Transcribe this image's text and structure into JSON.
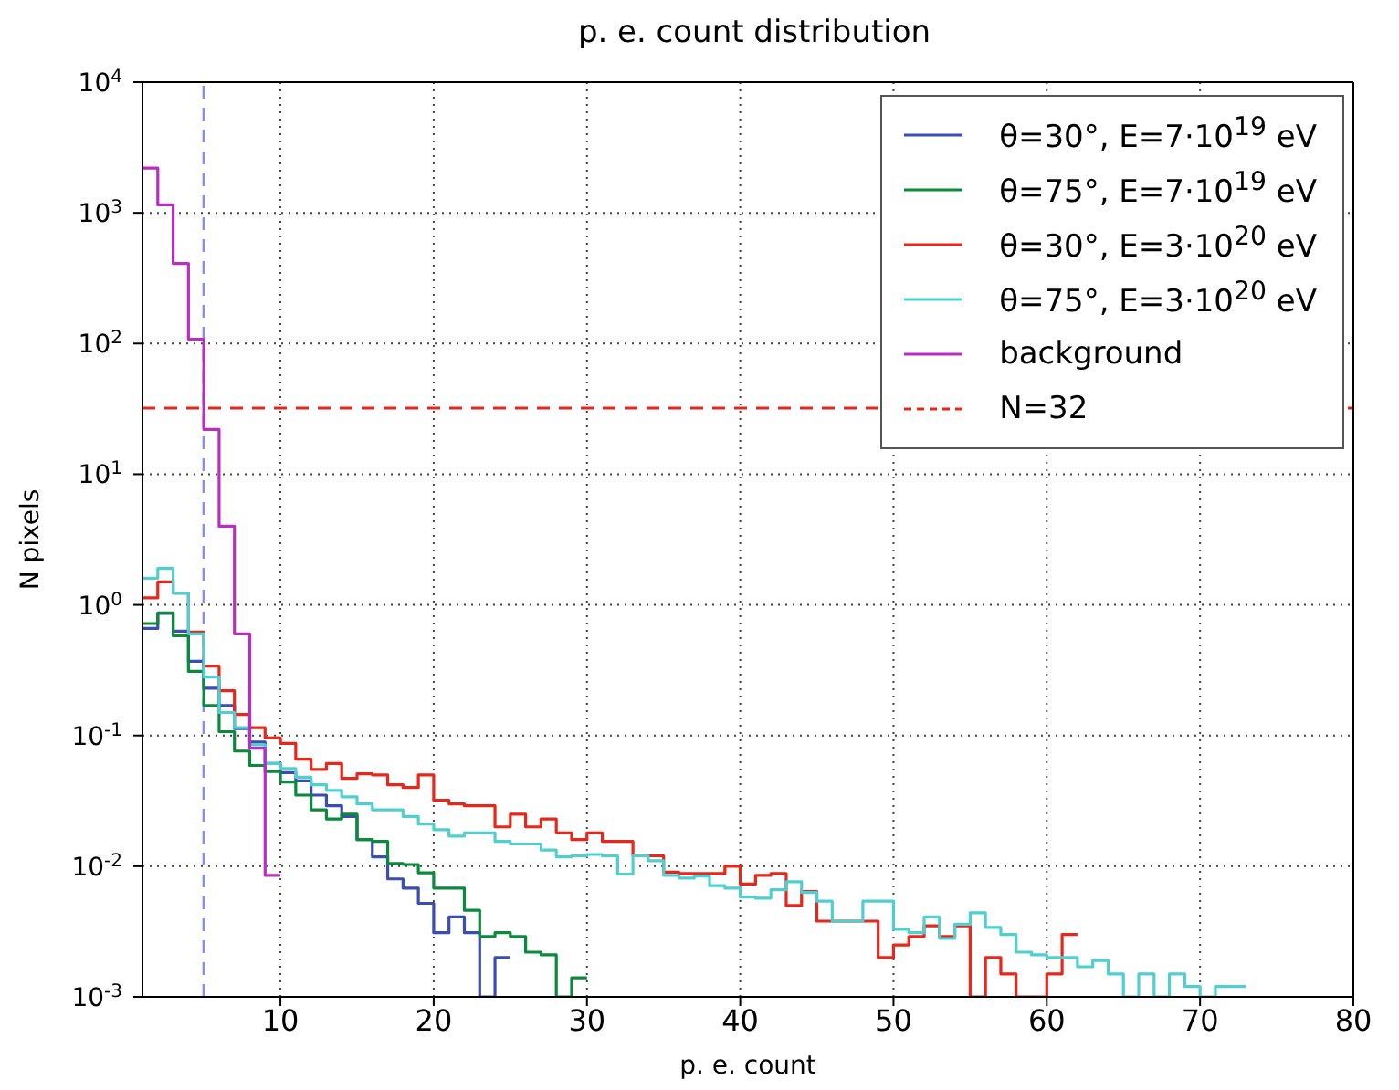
{
  "chart_data": {
    "type": "histogram",
    "title": "p. e. count distribution",
    "xlabel": "p. e. count",
    "ylabel": "N pixels",
    "bins": [
      1,
      2,
      3,
      4,
      5,
      6,
      7,
      8,
      9,
      10,
      11,
      12,
      13,
      14,
      15,
      16,
      17,
      18,
      19,
      20,
      21,
      22,
      23,
      24,
      25,
      26,
      27,
      28,
      29,
      30,
      31,
      32,
      33,
      34,
      35,
      36,
      37,
      38,
      39,
      40,
      41,
      42,
      43,
      44,
      45,
      46,
      47,
      48,
      49,
      50,
      51,
      52,
      53,
      54,
      55,
      56,
      57,
      58,
      59,
      60,
      61,
      62,
      63,
      64,
      65,
      66,
      67,
      68,
      69,
      70,
      71,
      72,
      73
    ],
    "series": [
      {
        "name": "θ=30°, E=7·10$^{19}$ eV",
        "color": "#3a4db5",
        "bins": [
          1,
          2,
          3,
          4,
          5,
          6,
          7,
          8,
          9,
          10,
          11,
          12,
          13,
          14,
          15,
          16,
          17,
          18,
          19,
          20,
          21,
          22,
          23,
          24,
          25
        ],
        "values": [
          0.66,
          0.86,
          0.63,
          0.37,
          0.23,
          0.17,
          0.113,
          0.089,
          0.061,
          0.052,
          0.045,
          0.035,
          0.029,
          0.024,
          0.016,
          0.0118,
          0.008,
          0.0068,
          0.0052,
          0.0031,
          0.0041,
          0.0031,
          null,
          0.002
        ]
      },
      {
        "name": "θ=75°, E=7·10$^{19}$ eV",
        "color": "#0a8a3a",
        "bins": [
          1,
          2,
          3,
          4,
          5,
          6,
          7,
          8,
          9,
          10,
          11,
          12,
          13,
          14,
          15,
          16,
          17,
          18,
          19,
          20,
          21,
          22,
          23,
          24,
          25,
          26,
          27,
          28,
          29,
          30
        ],
        "values": [
          0.72,
          0.87,
          0.58,
          0.31,
          0.17,
          0.107,
          0.076,
          0.059,
          0.053,
          0.044,
          0.035,
          0.027,
          0.023,
          0.025,
          0.016,
          0.0155,
          0.0105,
          0.0103,
          0.0089,
          0.0068,
          0.0068,
          0.0046,
          0.0029,
          0.0031,
          0.0029,
          0.0022,
          0.0021,
          null,
          0.0014
        ]
      },
      {
        "name": "θ=30°, E=3·10$^{20}$ eV",
        "color": "#e8271b",
        "bins": [
          1,
          2,
          3,
          4,
          5,
          6,
          7,
          8,
          9,
          10,
          11,
          12,
          13,
          14,
          15,
          16,
          17,
          18,
          19,
          20,
          21,
          22,
          23,
          24,
          25,
          26,
          27,
          28,
          29,
          30,
          31,
          32,
          33,
          34,
          35,
          36,
          37,
          38,
          39,
          40,
          41,
          42,
          43,
          44,
          45,
          46,
          47,
          48,
          49,
          50,
          51,
          52,
          53,
          54,
          55,
          56,
          57,
          58,
          59,
          60,
          61,
          62
        ],
        "values": [
          1.13,
          1.5,
          1.23,
          0.62,
          0.34,
          0.22,
          0.145,
          0.115,
          0.096,
          0.087,
          0.066,
          0.055,
          0.061,
          0.047,
          0.051,
          0.05,
          0.042,
          0.04,
          0.05,
          0.032,
          0.03,
          0.029,
          0.029,
          0.02,
          0.025,
          0.02,
          0.023,
          0.018,
          0.016,
          0.018,
          0.0155,
          0.0155,
          0.012,
          0.012,
          0.009,
          0.0088,
          0.0088,
          0.0088,
          0.01,
          0.0073,
          0.0085,
          0.0088,
          0.005,
          0.0064,
          0.0038,
          0.0038,
          0.0038,
          0.0038,
          0.002,
          0.0025,
          0.0029,
          0.0035,
          0.0029,
          0.0035,
          null,
          0.002,
          0.0015,
          null,
          null,
          0.0015,
          0.003
        ]
      },
      {
        "name": "θ=75°, E=3·10$^{20}$ eV",
        "color": "#4fcfcf",
        "values": [
          1.6,
          1.9,
          1.23,
          0.6,
          0.28,
          0.15,
          0.115,
          0.085,
          0.061,
          0.056,
          0.048,
          0.042,
          0.038,
          0.034,
          0.03,
          0.027,
          0.027,
          0.024,
          0.021,
          0.019,
          0.017,
          0.018,
          0.018,
          0.0155,
          0.0148,
          0.0148,
          0.0133,
          0.0118,
          0.012,
          0.0123,
          0.012,
          0.0087,
          0.012,
          0.011,
          0.0085,
          0.0081,
          0.0084,
          0.0071,
          0.0068,
          0.0058,
          0.0057,
          0.0066,
          0.0076,
          0.0063,
          0.0054,
          0.0038,
          0.0038,
          0.0054,
          0.0054,
          0.0033,
          0.0031,
          0.0041,
          0.0028,
          0.0036,
          0.0044,
          0.0034,
          0.003,
          0.0022,
          0.0021,
          0.002,
          0.002,
          0.0017,
          0.0019,
          0.0015,
          null,
          0.0015,
          null,
          0.0015,
          0.0012,
          null,
          0.0012,
          0.0012
        ]
      },
      {
        "name": "background",
        "color": "#b82fc0",
        "bins": [
          1,
          2,
          3,
          4,
          5,
          6,
          7,
          8,
          9,
          10
        ],
        "values": [
          2200,
          1150,
          410,
          108,
          22,
          4,
          0.6,
          0.08,
          0.0085
        ]
      }
    ],
    "ref_lines": [
      {
        "axis": "y",
        "value": 32,
        "label": "N=32",
        "color": "#e8271b",
        "line_style": "dashed"
      },
      {
        "axis": "x",
        "value": 5,
        "color": "#8890e0",
        "line_style": "dashed"
      }
    ],
    "xlim": [
      1,
      80
    ],
    "xticks": [
      10,
      20,
      30,
      40,
      50,
      60,
      70,
      80
    ],
    "ylim": [
      0.001,
      10000
    ],
    "yticks": [
      {
        "value": 0.001,
        "label": "10$^{-3}$"
      },
      {
        "value": 0.01,
        "label": "10$^{-2}$"
      },
      {
        "value": 0.1,
        "label": "10$^{-1}$"
      },
      {
        "value": 1,
        "label": "10$^{0}$"
      },
      {
        "value": 10,
        "label": "10$^{1}$"
      },
      {
        "value": 100,
        "label": "10$^{2}$"
      },
      {
        "value": 1000,
        "label": "10$^{3}$"
      },
      {
        "value": 10000,
        "label": "10$^{4}$"
      }
    ],
    "log": "y",
    "grid": true,
    "legend": "top right"
  }
}
